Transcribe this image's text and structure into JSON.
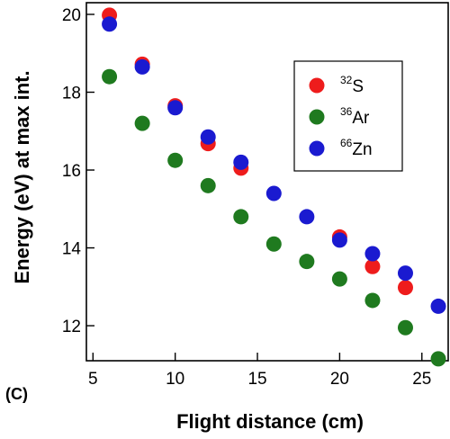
{
  "chart_data": {
    "type": "scatter",
    "panel_label": "(C)",
    "xlabel": "Flight distance (cm)",
    "ylabel": "Energy (eV) at max int.",
    "xlim": [
      4.6,
      26.6
    ],
    "ylim": [
      11.1,
      20.3
    ],
    "xticks": [
      5,
      10,
      15,
      20,
      25
    ],
    "yticks": [
      12,
      14,
      16,
      18,
      20
    ],
    "grid": false,
    "legend_position": "top-right",
    "series": [
      {
        "sup": "32",
        "element": "S",
        "color": "#ee1c1c",
        "x": [
          6,
          8,
          10,
          12,
          14,
          20,
          22,
          24
        ],
        "y": [
          19.98,
          18.72,
          17.65,
          16.68,
          16.05,
          14.28,
          13.52,
          12.98
        ]
      },
      {
        "sup": "36",
        "element": "Ar",
        "color": "#1f7a1f",
        "x": [
          6,
          8,
          10,
          12,
          14,
          16,
          18,
          20,
          22,
          24,
          26
        ],
        "y": [
          18.4,
          17.2,
          16.25,
          15.6,
          14.8,
          14.1,
          13.65,
          13.2,
          12.65,
          11.95,
          11.15
        ]
      },
      {
        "sup": "66",
        "element": "Zn",
        "color": "#1a1ad0",
        "x": [
          6,
          8,
          10,
          12,
          14,
          16,
          18,
          20,
          22,
          24,
          26
        ],
        "y": [
          19.75,
          18.65,
          17.6,
          16.85,
          16.2,
          15.4,
          14.8,
          14.2,
          13.85,
          13.35,
          12.5
        ]
      }
    ]
  }
}
